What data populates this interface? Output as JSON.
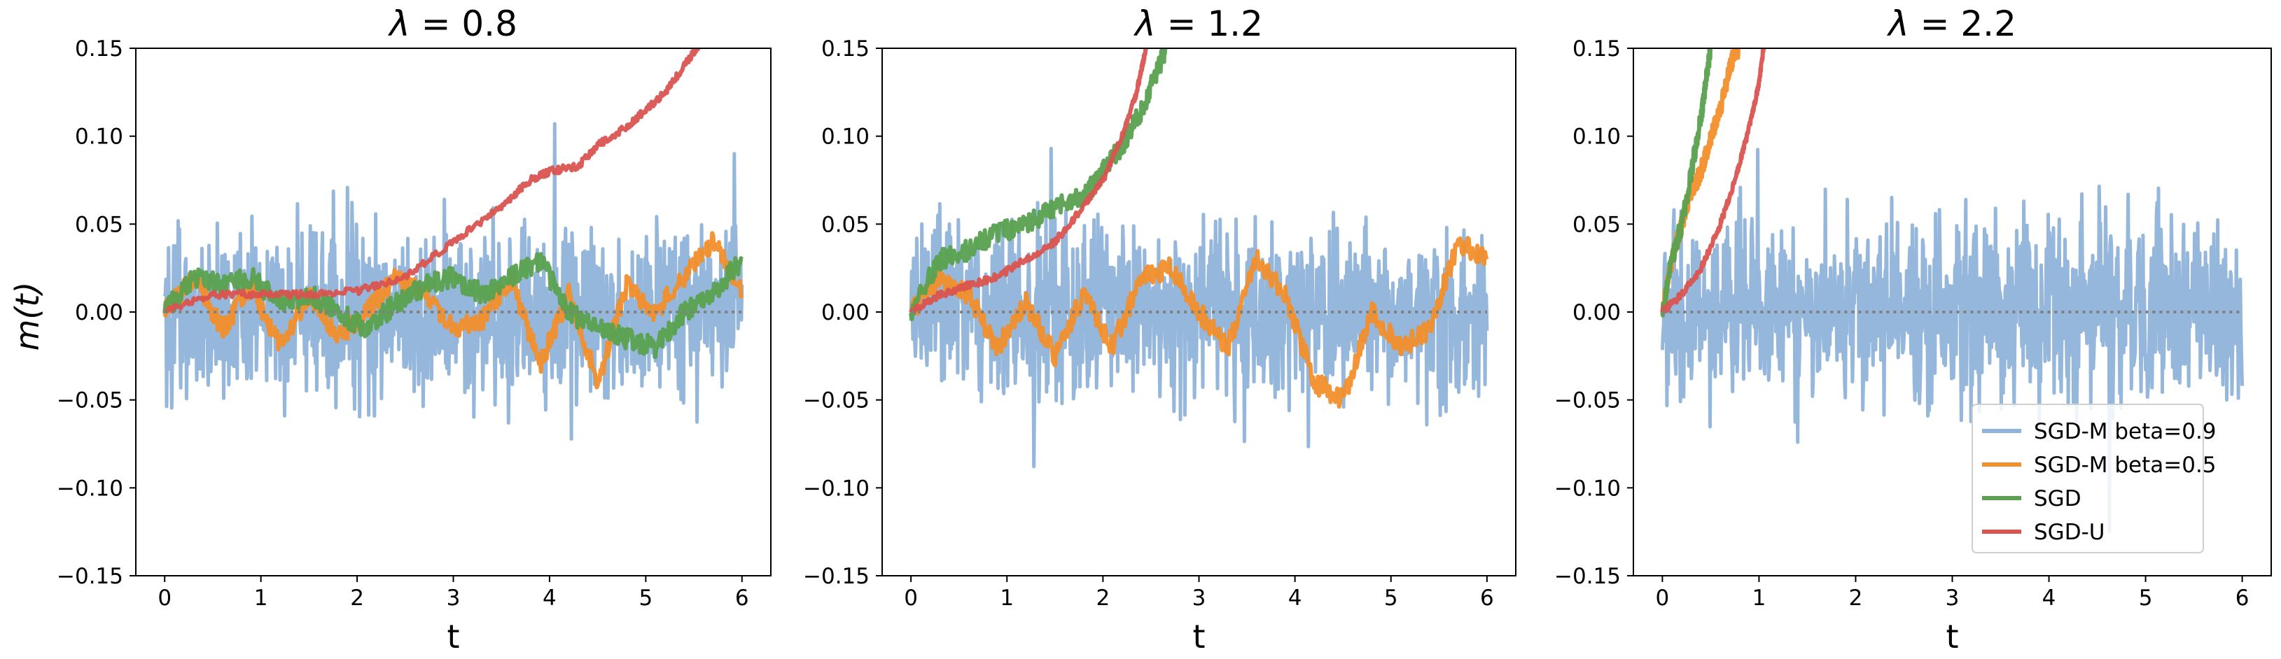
{
  "figure": {
    "ylabel": "m(t)",
    "colors": {
      "SGD-M beta=0.9": "#8fb3d9",
      "SGD-M beta=0.5": "#f28e2b",
      "SGD": "#59a14f",
      "SGD-U": "#d9534f",
      "zero_line": "#808080"
    },
    "legend_entries": [
      "SGD-M beta=0.9",
      "SGD-M beta=0.5",
      "SGD",
      "SGD-U"
    ],
    "legend_placement": "lower-right of third panel"
  },
  "chart_data": [
    {
      "type": "line",
      "title_prefix": "λ",
      "title_value": "= 0.8",
      "xlabel": "t",
      "ylabel": "m(t)",
      "xlim": [
        -0.3,
        6.3
      ],
      "ylim": [
        -0.15,
        0.15
      ],
      "xticks": [
        "0",
        "1",
        "2",
        "3",
        "4",
        "5",
        "6"
      ],
      "yticks": [
        "−0.15",
        "−0.10",
        "−0.05",
        "0.00",
        "0.05",
        "0.10",
        "0.15"
      ],
      "grid": false,
      "series": [
        {
          "name": "SGD-M beta=0.9",
          "kind": "noise",
          "amplitude": 0.035,
          "range": [
            0,
            6
          ]
        },
        {
          "name": "SGD-M beta=0.5",
          "x": [
            0,
            0.3,
            0.6,
            0.9,
            1.2,
            1.5,
            1.8,
            2.1,
            2.4,
            2.7,
            3.0,
            3.3,
            3.6,
            3.9,
            4.2,
            4.5,
            4.8,
            5.1,
            5.4,
            5.7,
            6.0
          ],
          "y": [
            0.0,
            0.02,
            -0.01,
            0.015,
            -0.02,
            0.01,
            -0.015,
            0.0,
            0.02,
            0.01,
            -0.01,
            -0.005,
            0.02,
            -0.03,
            0.01,
            -0.04,
            0.015,
            0.0,
            0.02,
            0.04,
            0.01
          ]
        },
        {
          "name": "SGD",
          "x": [
            0,
            0.3,
            0.6,
            0.9,
            1.2,
            1.5,
            1.8,
            2.1,
            2.4,
            2.7,
            3.0,
            3.3,
            3.6,
            3.9,
            4.2,
            4.5,
            4.8,
            5.1,
            5.4,
            5.7,
            6.0
          ],
          "y": [
            0.0,
            0.02,
            0.015,
            0.02,
            0.005,
            0.01,
            0.0,
            -0.01,
            0.005,
            0.015,
            0.02,
            0.01,
            0.02,
            0.03,
            0.0,
            -0.01,
            -0.015,
            -0.02,
            0.0,
            0.01,
            0.03
          ]
        },
        {
          "name": "SGD-U",
          "x": [
            0,
            0.5,
            1.0,
            1.5,
            2.0,
            2.5,
            3.0,
            3.5,
            3.8,
            4.0,
            4.3,
            4.5,
            4.8,
            5.0,
            5.2,
            5.4,
            5.55
          ],
          "y": [
            0.0,
            0.01,
            0.01,
            0.01,
            0.012,
            0.02,
            0.04,
            0.06,
            0.075,
            0.08,
            0.083,
            0.095,
            0.105,
            0.115,
            0.125,
            0.14,
            0.152
          ]
        }
      ]
    },
    {
      "type": "line",
      "title_prefix": "λ",
      "title_value": "= 1.2",
      "xlabel": "t",
      "ylabel": "",
      "xlim": [
        -0.3,
        6.3
      ],
      "ylim": [
        -0.15,
        0.15
      ],
      "xticks": [
        "0",
        "1",
        "2",
        "3",
        "4",
        "5",
        "6"
      ],
      "yticks": [
        "−0.15",
        "−0.10",
        "−0.05",
        "0.00",
        "0.05",
        "0.10",
        "0.15"
      ],
      "grid": false,
      "series": [
        {
          "name": "SGD-M beta=0.9",
          "kind": "noise",
          "amplitude": 0.035,
          "range": [
            0,
            6
          ]
        },
        {
          "name": "SGD-M beta=0.5",
          "x": [
            0,
            0.3,
            0.6,
            0.9,
            1.2,
            1.5,
            1.8,
            2.1,
            2.4,
            2.7,
            3.0,
            3.3,
            3.6,
            3.9,
            4.2,
            4.5,
            4.8,
            5.1,
            5.4,
            5.7,
            6.0
          ],
          "y": [
            0.0,
            0.02,
            0.01,
            -0.02,
            0.005,
            -0.025,
            0.01,
            -0.02,
            0.02,
            0.025,
            0.0,
            -0.02,
            0.03,
            0.01,
            -0.04,
            -0.05,
            0.0,
            -0.02,
            -0.01,
            0.04,
            0.03
          ]
        },
        {
          "name": "SGD",
          "x": [
            0,
            0.3,
            0.6,
            0.9,
            1.2,
            1.5,
            1.8,
            2.0,
            2.2,
            2.4,
            2.55,
            2.65
          ],
          "y": [
            0.0,
            0.03,
            0.035,
            0.045,
            0.05,
            0.06,
            0.065,
            0.08,
            0.095,
            0.115,
            0.135,
            0.15
          ]
        },
        {
          "name": "SGD-U",
          "x": [
            0,
            0.3,
            0.6,
            0.9,
            1.2,
            1.5,
            1.8,
            2.0,
            2.2,
            2.35,
            2.45
          ],
          "y": [
            0.0,
            0.01,
            0.015,
            0.02,
            0.03,
            0.04,
            0.06,
            0.075,
            0.1,
            0.125,
            0.15
          ]
        }
      ]
    },
    {
      "type": "line",
      "title_prefix": "λ",
      "title_value": "= 2.2",
      "xlabel": "t",
      "ylabel": "",
      "xlim": [
        -0.3,
        6.3
      ],
      "ylim": [
        -0.15,
        0.15
      ],
      "xticks": [
        "0",
        "1",
        "2",
        "3",
        "4",
        "5",
        "6"
      ],
      "yticks": [
        "−0.15",
        "−0.10",
        "−0.05",
        "0.00",
        "0.05",
        "0.10",
        "0.15"
      ],
      "grid": false,
      "series": [
        {
          "name": "SGD-M beta=0.9",
          "kind": "noise",
          "amplitude": 0.04,
          "range": [
            0,
            6
          ]
        },
        {
          "name": "SGD-M beta=0.5",
          "x": [
            0,
            0.1,
            0.2,
            0.3,
            0.4,
            0.5,
            0.6,
            0.7,
            0.8
          ],
          "y": [
            0.0,
            0.03,
            0.05,
            0.07,
            0.08,
            0.1,
            0.115,
            0.14,
            0.152
          ]
        },
        {
          "name": "SGD",
          "x": [
            0,
            0.1,
            0.2,
            0.3,
            0.4,
            0.45,
            0.5
          ],
          "y": [
            0.0,
            0.03,
            0.05,
            0.08,
            0.11,
            0.13,
            0.152
          ]
        },
        {
          "name": "SGD-U",
          "x": [
            0,
            0.2,
            0.4,
            0.6,
            0.75,
            0.9,
            1.0,
            1.05
          ],
          "y": [
            0.0,
            0.01,
            0.025,
            0.05,
            0.075,
            0.105,
            0.13,
            0.152
          ]
        }
      ]
    }
  ]
}
